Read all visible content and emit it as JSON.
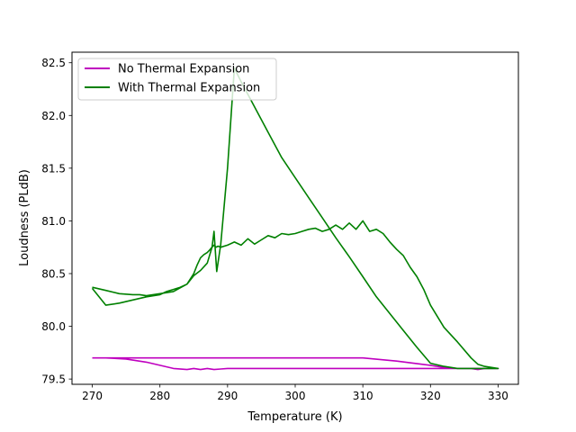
{
  "chart_data": {
    "type": "line",
    "title": "",
    "xlabel": "Temperature (K)",
    "ylabel": "Loudness (PLdB)",
    "xlim": [
      267,
      333
    ],
    "ylim": [
      79.45,
      82.6
    ],
    "xticks": [
      270,
      280,
      290,
      300,
      310,
      320,
      330
    ],
    "yticks": [
      79.5,
      80.0,
      80.5,
      81.0,
      81.5,
      82.0,
      82.5
    ],
    "xtick_labels": [
      "270",
      "280",
      "290",
      "300",
      "310",
      "320",
      "330"
    ],
    "ytick_labels": [
      "79.5",
      "80.0",
      "80.5",
      "81.0",
      "81.5",
      "82.0",
      "82.5"
    ],
    "grid": false,
    "legend_position": "top-left",
    "series": [
      {
        "name": "No Thermal Expansion",
        "color": "#bf00bf",
        "x": [
          270,
          272,
          275,
          278,
          280,
          282,
          284,
          285,
          286,
          287,
          288,
          289,
          290,
          300,
          310,
          320,
          322,
          324,
          326,
          327,
          328,
          330,
          328,
          326,
          324,
          322,
          320,
          315,
          310,
          300,
          290,
          280,
          270
        ],
        "y": [
          79.7,
          79.7,
          79.69,
          79.66,
          79.63,
          79.6,
          79.59,
          79.6,
          79.59,
          79.6,
          79.59,
          79.595,
          79.6,
          79.6,
          79.6,
          79.6,
          79.6,
          79.6,
          79.6,
          79.59,
          79.6,
          79.6,
          79.6,
          79.6,
          79.6,
          79.61,
          79.63,
          79.67,
          79.7,
          79.7,
          79.7,
          79.7,
          79.7
        ]
      },
      {
        "name": "With Thermal Expansion",
        "color": "#008000",
        "x": [
          270,
          272,
          274,
          276,
          277,
          278,
          280,
          282,
          284,
          285,
          286,
          287,
          287.7,
          288,
          288.4,
          289,
          290,
          291,
          292,
          294,
          296,
          298,
          300,
          302,
          304,
          306,
          308,
          310,
          312,
          314,
          316,
          318,
          320,
          322,
          324,
          326,
          328,
          330,
          328,
          327,
          326,
          324,
          322,
          320,
          319,
          318,
          317,
          316,
          315,
          314,
          313,
          312,
          311,
          310,
          309,
          308,
          307,
          306,
          305,
          304,
          303,
          302,
          301,
          300,
          299,
          298,
          297,
          296,
          295,
          294,
          293,
          292,
          291,
          290,
          289,
          288.6,
          288.3,
          288,
          287.7,
          287.3,
          287,
          286.5,
          286,
          285.5,
          285,
          284.5,
          284,
          283,
          282,
          281,
          280,
          278,
          276,
          274,
          272,
          270
        ],
        "y": [
          80.37,
          80.34,
          80.31,
          80.3,
          80.3,
          80.29,
          80.31,
          80.33,
          80.4,
          80.48,
          80.53,
          80.6,
          80.75,
          80.9,
          80.52,
          80.78,
          81.5,
          82.45,
          82.32,
          82.08,
          81.84,
          81.6,
          81.41,
          81.22,
          81.03,
          80.84,
          80.66,
          80.47,
          80.28,
          80.12,
          79.96,
          79.8,
          79.65,
          79.62,
          79.6,
          79.6,
          79.6,
          79.6,
          79.62,
          79.64,
          79.7,
          79.85,
          79.99,
          80.2,
          80.35,
          80.47,
          80.56,
          80.67,
          80.73,
          80.8,
          80.88,
          80.92,
          80.9,
          81.0,
          80.92,
          80.98,
          80.92,
          80.96,
          80.92,
          80.9,
          80.93,
          80.92,
          80.9,
          80.88,
          80.87,
          80.88,
          80.84,
          80.86,
          80.82,
          80.78,
          80.83,
          80.77,
          80.8,
          80.77,
          80.75,
          80.76,
          80.75,
          80.77,
          80.75,
          80.72,
          80.7,
          80.68,
          80.65,
          80.58,
          80.5,
          80.45,
          80.4,
          80.37,
          80.35,
          80.33,
          80.3,
          80.28,
          80.25,
          80.22,
          80.2,
          80.36
        ]
      }
    ]
  }
}
